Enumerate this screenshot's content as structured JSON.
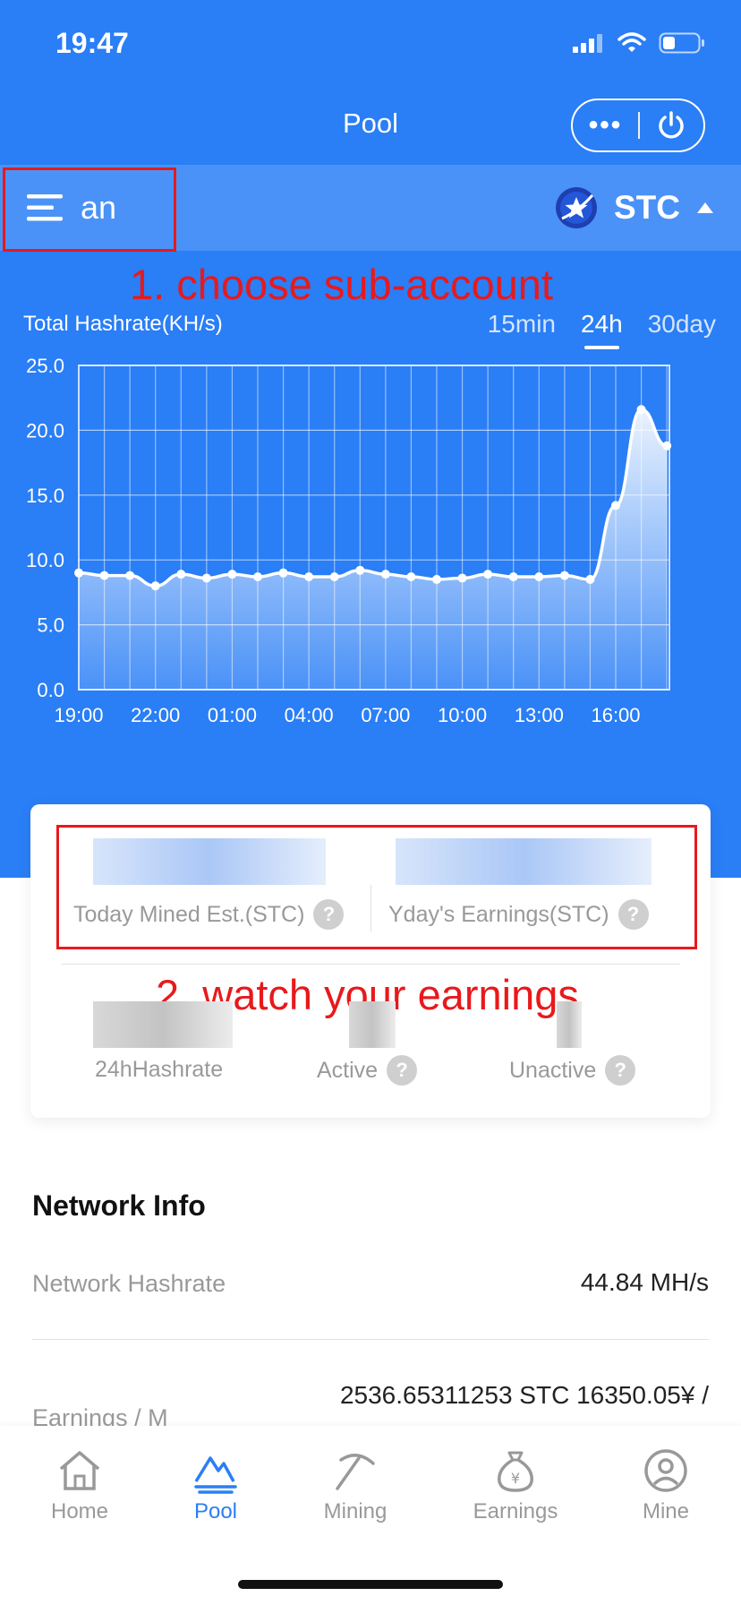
{
  "status_bar": {
    "time": "19:47"
  },
  "header": {
    "title": "Pool",
    "more": "•••"
  },
  "account": {
    "name": "an",
    "coin": "STC"
  },
  "annotations": {
    "step1": "1. choose sub-account",
    "step2": "2. watch your earnings"
  },
  "chart": {
    "title": "Total Hashrate(KH/s)",
    "ranges": [
      "15min",
      "24h",
      "30day"
    ],
    "active_range": "24h"
  },
  "chart_data": {
    "type": "area",
    "ylabel": "Total Hashrate(KH/s)",
    "ylim": [
      0,
      25
    ],
    "y_ticks": [
      "25.0",
      "20.0",
      "15.0",
      "10.0",
      "5.0",
      "0.0"
    ],
    "x_tick_labels": [
      "19:00",
      "22:00",
      "01:00",
      "04:00",
      "07:00",
      "10:00",
      "13:00",
      "16:00"
    ],
    "x_tick_index": [
      0,
      3,
      6,
      9,
      12,
      15,
      18,
      21
    ],
    "values": [
      9.0,
      8.8,
      8.8,
      8.0,
      8.9,
      8.6,
      8.9,
      8.7,
      9.0,
      8.7,
      8.7,
      9.2,
      8.9,
      8.7,
      8.5,
      8.6,
      8.9,
      8.7,
      8.7,
      8.8,
      8.5,
      14.2,
      21.6,
      18.8
    ],
    "grid": true,
    "color": "#ffffff"
  },
  "stats": {
    "today_label": "Today Mined Est.(STC)",
    "yday_label": "Yday's Earnings(STC)",
    "hashrate_label": "24hHashrate",
    "active_label": "Active",
    "unactive_label": "Unactive",
    "help": "?"
  },
  "network": {
    "title": "Network Info",
    "rows": [
      {
        "label": "Network Hashrate",
        "value": "44.84 MH/s"
      },
      {
        "label": "Earnings / M",
        "value": "2536.65311253 STC 16350.05¥ /"
      }
    ]
  },
  "tabs": [
    {
      "label": "Home",
      "icon": "home-icon"
    },
    {
      "label": "Pool",
      "icon": "pool-icon"
    },
    {
      "label": "Mining",
      "icon": "pickaxe-icon"
    },
    {
      "label": "Earnings",
      "icon": "money-bag-icon"
    },
    {
      "label": "Mine",
      "icon": "user-icon"
    }
  ],
  "colors": {
    "primary": "#2a7ef6",
    "annotation": "#e8191b"
  }
}
